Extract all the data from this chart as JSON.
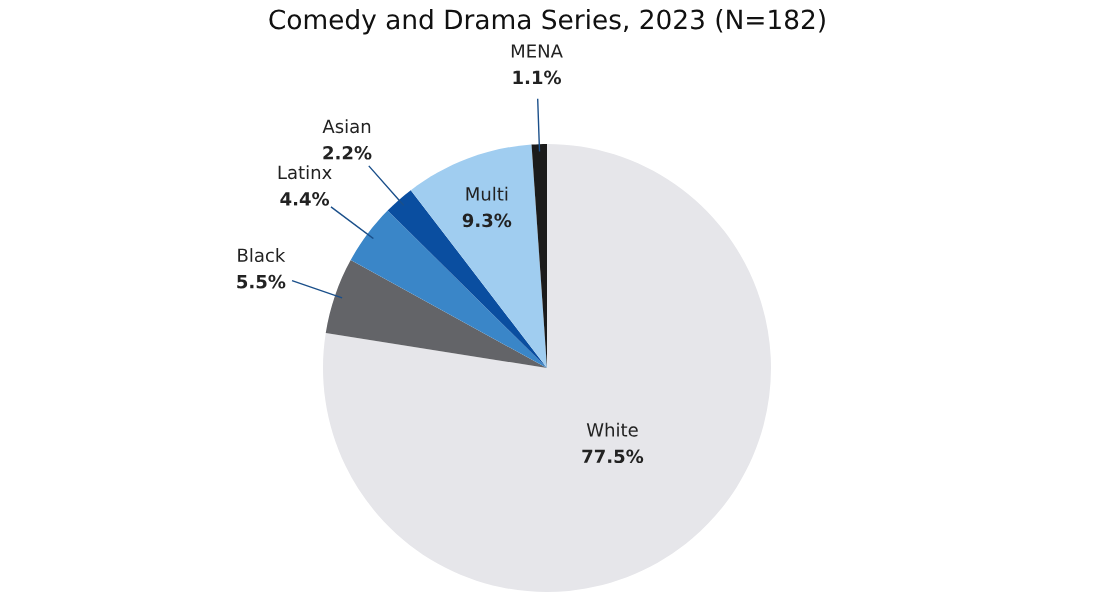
{
  "chart_data": {
    "type": "pie",
    "title": "Comedy and Drama Series, 2023 (N=182)",
    "categories": [
      "White",
      "Black",
      "Latinx",
      "Asian",
      "Multi",
      "MENA"
    ],
    "values": [
      77.5,
      5.5,
      4.4,
      2.2,
      9.3,
      1.1
    ],
    "value_labels": [
      "77.5%",
      "5.5%",
      "4.4%",
      "2.2%",
      "9.3%",
      "1.1%"
    ],
    "colors": [
      "#e6e6ea",
      "#636468",
      "#3a86c8",
      "#0a4ea0",
      "#a0cdf0",
      "#1b1b1b"
    ],
    "legend": false
  }
}
